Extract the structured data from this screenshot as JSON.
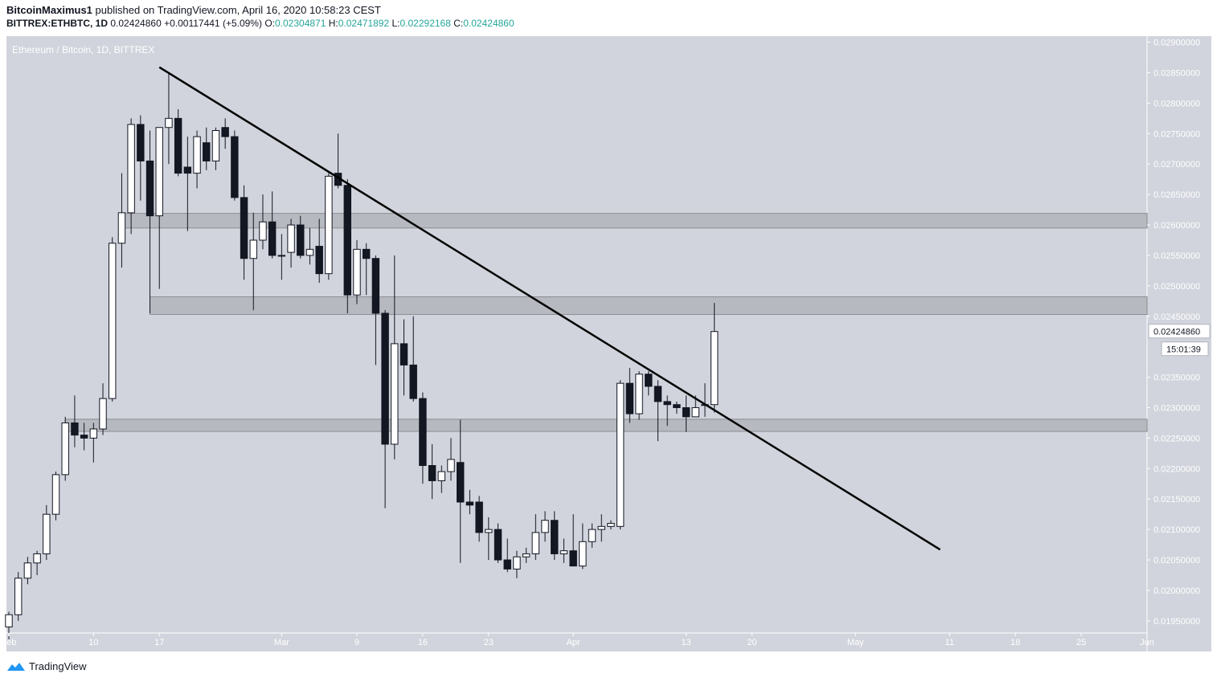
{
  "header": {
    "author": "BitcoinMaximus1",
    "published": "published on TradingView.com, April 16, 2020 10:58:23 CEST",
    "symbol": "BITTREX:ETHBTC, 1D",
    "last": "0.02424860",
    "change": "+0.00117441 (+5.09%)",
    "o_label": "O:",
    "o": "0.02304871",
    "h_label": "H:",
    "h": "0.02471892",
    "l_label": "L:",
    "l": "0.02292168",
    "c_label": "C:",
    "c": "0.02424860"
  },
  "chart_data": {
    "type": "candlestick",
    "title": "Ethereum / Bitcoin, 1D, BITTREX",
    "ylim": [
      0.0193,
      0.0291
    ],
    "yticks": [
      0.029,
      0.0285,
      0.028,
      0.0275,
      0.027,
      0.0265,
      0.026,
      0.0255,
      0.025,
      0.0245,
      0.0235,
      0.023,
      0.0225,
      0.022,
      0.0215,
      0.021,
      0.0205,
      0.02,
      0.0195
    ],
    "ytick_labels": [
      "0.02900000",
      "0.02850000",
      "0.02800000",
      "0.02750000",
      "0.02700000",
      "0.02650000",
      "0.02600000",
      "0.02550000",
      "0.02500000",
      "0.02450000",
      "0.02350000",
      "0.02300000",
      "0.02250000",
      "0.02200000",
      "0.02150000",
      "0.02100000",
      "0.02050000",
      "0.02000000",
      "0.01950000"
    ],
    "xlim": [
      "2020-02-01",
      "2020-06-01"
    ],
    "xticks": [
      {
        "date": "2020-02-01",
        "label": "Feb"
      },
      {
        "date": "2020-02-10",
        "label": "10"
      },
      {
        "date": "2020-02-17",
        "label": "17"
      },
      {
        "date": "2020-03-01",
        "label": "Mar"
      },
      {
        "date": "2020-03-09",
        "label": "9"
      },
      {
        "date": "2020-03-16",
        "label": "16"
      },
      {
        "date": "2020-03-23",
        "label": "23"
      },
      {
        "date": "2020-04-01",
        "label": "Apr"
      },
      {
        "date": "2020-04-13",
        "label": "13"
      },
      {
        "date": "2020-04-20",
        "label": "20"
      },
      {
        "date": "2020-05-01",
        "label": "May"
      },
      {
        "date": "2020-05-11",
        "label": "11"
      },
      {
        "date": "2020-05-18",
        "label": "18"
      },
      {
        "date": "2020-05-25",
        "label": "25"
      },
      {
        "date": "2020-06-01",
        "label": "Jun"
      }
    ],
    "price_label": "0.02424860",
    "countdown": "15:01:39",
    "zones": [
      {
        "from": 0.02595,
        "to": 0.02619
      },
      {
        "from": 0.02453,
        "to": 0.02482
      },
      {
        "from": 0.02261,
        "to": 0.02281
      }
    ],
    "trendline": [
      {
        "date": "2020-02-17",
        "price": 0.02859
      },
      {
        "date": "2020-05-10",
        "price": 0.02067
      }
    ],
    "candles": [
      {
        "d": "2020-01-31",
        "o": 0.01955,
        "h": 0.01975,
        "l": 0.01925,
        "c": 0.0194
      },
      {
        "d": "2020-02-01",
        "o": 0.0194,
        "h": 0.01965,
        "l": 0.0192,
        "c": 0.0196
      },
      {
        "d": "2020-02-02",
        "o": 0.0196,
        "h": 0.0203,
        "l": 0.0195,
        "c": 0.0202
      },
      {
        "d": "2020-02-03",
        "o": 0.0202,
        "h": 0.02055,
        "l": 0.0201,
        "c": 0.02045
      },
      {
        "d": "2020-02-04",
        "o": 0.02045,
        "h": 0.02065,
        "l": 0.02025,
        "c": 0.0206
      },
      {
        "d": "2020-02-05",
        "o": 0.0206,
        "h": 0.0214,
        "l": 0.0205,
        "c": 0.02125
      },
      {
        "d": "2020-02-06",
        "o": 0.02125,
        "h": 0.02195,
        "l": 0.02115,
        "c": 0.0219
      },
      {
        "d": "2020-02-07",
        "o": 0.0219,
        "h": 0.02285,
        "l": 0.0218,
        "c": 0.02275
      },
      {
        "d": "2020-02-08",
        "o": 0.02275,
        "h": 0.0232,
        "l": 0.02235,
        "c": 0.02255
      },
      {
        "d": "2020-02-09",
        "o": 0.02255,
        "h": 0.02275,
        "l": 0.0223,
        "c": 0.0225
      },
      {
        "d": "2020-02-10",
        "o": 0.0225,
        "h": 0.02275,
        "l": 0.0221,
        "c": 0.02265
      },
      {
        "d": "2020-02-11",
        "o": 0.02265,
        "h": 0.0234,
        "l": 0.02255,
        "c": 0.02315
      },
      {
        "d": "2020-02-12",
        "o": 0.02315,
        "h": 0.0258,
        "l": 0.0231,
        "c": 0.0257
      },
      {
        "d": "2020-02-13",
        "o": 0.0257,
        "h": 0.02685,
        "l": 0.0253,
        "c": 0.0262
      },
      {
        "d": "2020-02-14",
        "o": 0.0262,
        "h": 0.02775,
        "l": 0.02585,
        "c": 0.02765
      },
      {
        "d": "2020-02-15",
        "o": 0.02765,
        "h": 0.0278,
        "l": 0.0264,
        "c": 0.02705
      },
      {
        "d": "2020-02-16",
        "o": 0.02705,
        "h": 0.02755,
        "l": 0.02455,
        "c": 0.02615
      },
      {
        "d": "2020-02-17",
        "o": 0.02615,
        "h": 0.0276,
        "l": 0.02495,
        "c": 0.0276
      },
      {
        "d": "2020-02-18",
        "o": 0.0276,
        "h": 0.0285,
        "l": 0.027,
        "c": 0.02775
      },
      {
        "d": "2020-02-19",
        "o": 0.02775,
        "h": 0.0279,
        "l": 0.0268,
        "c": 0.02685
      },
      {
        "d": "2020-02-20",
        "o": 0.02695,
        "h": 0.02745,
        "l": 0.0259,
        "c": 0.02685
      },
      {
        "d": "2020-02-21",
        "o": 0.02685,
        "h": 0.02755,
        "l": 0.0266,
        "c": 0.02745
      },
      {
        "d": "2020-02-22",
        "o": 0.02735,
        "h": 0.0276,
        "l": 0.0269,
        "c": 0.02705
      },
      {
        "d": "2020-02-23",
        "o": 0.02705,
        "h": 0.0276,
        "l": 0.0269,
        "c": 0.02755
      },
      {
        "d": "2020-02-24",
        "o": 0.0276,
        "h": 0.02775,
        "l": 0.02725,
        "c": 0.02745
      },
      {
        "d": "2020-02-25",
        "o": 0.02745,
        "h": 0.02755,
        "l": 0.0264,
        "c": 0.02645
      },
      {
        "d": "2020-02-26",
        "o": 0.02645,
        "h": 0.02665,
        "l": 0.0251,
        "c": 0.02545
      },
      {
        "d": "2020-02-27",
        "o": 0.02545,
        "h": 0.0262,
        "l": 0.0246,
        "c": 0.02575
      },
      {
        "d": "2020-02-28",
        "o": 0.02575,
        "h": 0.0265,
        "l": 0.0256,
        "c": 0.02605
      },
      {
        "d": "2020-02-29",
        "o": 0.02605,
        "h": 0.02655,
        "l": 0.02545,
        "c": 0.0255
      },
      {
        "d": "2020-03-01",
        "o": 0.0255,
        "h": 0.02585,
        "l": 0.0251,
        "c": 0.0255
      },
      {
        "d": "2020-03-02",
        "o": 0.02555,
        "h": 0.0261,
        "l": 0.0253,
        "c": 0.026
      },
      {
        "d": "2020-03-03",
        "o": 0.026,
        "h": 0.02615,
        "l": 0.02545,
        "c": 0.0255
      },
      {
        "d": "2020-03-04",
        "o": 0.0255,
        "h": 0.02595,
        "l": 0.02535,
        "c": 0.0256
      },
      {
        "d": "2020-03-05",
        "o": 0.02565,
        "h": 0.0261,
        "l": 0.02505,
        "c": 0.0252
      },
      {
        "d": "2020-03-06",
        "o": 0.0252,
        "h": 0.02685,
        "l": 0.0251,
        "c": 0.0268
      },
      {
        "d": "2020-03-07",
        "o": 0.02685,
        "h": 0.0275,
        "l": 0.0266,
        "c": 0.02665
      },
      {
        "d": "2020-03-08",
        "o": 0.02665,
        "h": 0.02675,
        "l": 0.02455,
        "c": 0.02485
      },
      {
        "d": "2020-03-09",
        "o": 0.02485,
        "h": 0.02575,
        "l": 0.0247,
        "c": 0.0256
      },
      {
        "d": "2020-03-10",
        "o": 0.0256,
        "h": 0.0257,
        "l": 0.02485,
        "c": 0.02545
      },
      {
        "d": "2020-03-11",
        "o": 0.02545,
        "h": 0.0255,
        "l": 0.0237,
        "c": 0.02455
      },
      {
        "d": "2020-03-12",
        "o": 0.02455,
        "h": 0.0246,
        "l": 0.02135,
        "c": 0.0224
      },
      {
        "d": "2020-03-13",
        "o": 0.0224,
        "h": 0.0255,
        "l": 0.02215,
        "c": 0.02405
      },
      {
        "d": "2020-03-14",
        "o": 0.02405,
        "h": 0.02445,
        "l": 0.0232,
        "c": 0.0237
      },
      {
        "d": "2020-03-15",
        "o": 0.0237,
        "h": 0.0245,
        "l": 0.0231,
        "c": 0.02315
      },
      {
        "d": "2020-03-16",
        "o": 0.02315,
        "h": 0.02325,
        "l": 0.02175,
        "c": 0.02205
      },
      {
        "d": "2020-03-17",
        "o": 0.02205,
        "h": 0.0224,
        "l": 0.0215,
        "c": 0.0218
      },
      {
        "d": "2020-03-18",
        "o": 0.0218,
        "h": 0.02205,
        "l": 0.0216,
        "c": 0.02195
      },
      {
        "d": "2020-03-19",
        "o": 0.02195,
        "h": 0.0225,
        "l": 0.0218,
        "c": 0.02215
      },
      {
        "d": "2020-03-20",
        "o": 0.0221,
        "h": 0.0228,
        "l": 0.02045,
        "c": 0.02145
      },
      {
        "d": "2020-03-21",
        "o": 0.02145,
        "h": 0.02165,
        "l": 0.02125,
        "c": 0.0214
      },
      {
        "d": "2020-03-22",
        "o": 0.02145,
        "h": 0.02155,
        "l": 0.0208,
        "c": 0.02095
      },
      {
        "d": "2020-03-23",
        "o": 0.02095,
        "h": 0.0212,
        "l": 0.0205,
        "c": 0.021
      },
      {
        "d": "2020-03-24",
        "o": 0.021,
        "h": 0.0211,
        "l": 0.02045,
        "c": 0.0205
      },
      {
        "d": "2020-03-25",
        "o": 0.0205,
        "h": 0.02085,
        "l": 0.0203,
        "c": 0.02035
      },
      {
        "d": "2020-03-26",
        "o": 0.02035,
        "h": 0.02065,
        "l": 0.0202,
        "c": 0.02055
      },
      {
        "d": "2020-03-27",
        "o": 0.02055,
        "h": 0.0207,
        "l": 0.02045,
        "c": 0.0206
      },
      {
        "d": "2020-03-28",
        "o": 0.0206,
        "h": 0.02125,
        "l": 0.0205,
        "c": 0.02095
      },
      {
        "d": "2020-03-29",
        "o": 0.02095,
        "h": 0.0213,
        "l": 0.0208,
        "c": 0.02115
      },
      {
        "d": "2020-03-30",
        "o": 0.02115,
        "h": 0.0213,
        "l": 0.0205,
        "c": 0.0206
      },
      {
        "d": "2020-03-31",
        "o": 0.0206,
        "h": 0.02085,
        "l": 0.02045,
        "c": 0.02065
      },
      {
        "d": "2020-04-01",
        "o": 0.02065,
        "h": 0.02125,
        "l": 0.0204,
        "c": 0.0204
      },
      {
        "d": "2020-04-02",
        "o": 0.0204,
        "h": 0.0211,
        "l": 0.02035,
        "c": 0.0208
      },
      {
        "d": "2020-04-03",
        "o": 0.0208,
        "h": 0.0211,
        "l": 0.0207,
        "c": 0.021
      },
      {
        "d": "2020-04-04",
        "o": 0.021,
        "h": 0.02125,
        "l": 0.0208,
        "c": 0.02105
      },
      {
        "d": "2020-04-05",
        "o": 0.02105,
        "h": 0.02115,
        "l": 0.021,
        "c": 0.0211
      },
      {
        "d": "2020-04-06",
        "o": 0.02105,
        "h": 0.02345,
        "l": 0.021,
        "c": 0.0234
      },
      {
        "d": "2020-04-07",
        "o": 0.0234,
        "h": 0.02365,
        "l": 0.02275,
        "c": 0.0229
      },
      {
        "d": "2020-04-08",
        "o": 0.0229,
        "h": 0.0236,
        "l": 0.0228,
        "c": 0.02355
      },
      {
        "d": "2020-04-09",
        "o": 0.02355,
        "h": 0.0236,
        "l": 0.0232,
        "c": 0.02335
      },
      {
        "d": "2020-04-10",
        "o": 0.02335,
        "h": 0.02345,
        "l": 0.02245,
        "c": 0.0231
      },
      {
        "d": "2020-04-11",
        "o": 0.0231,
        "h": 0.0232,
        "l": 0.0227,
        "c": 0.02305
      },
      {
        "d": "2020-04-12",
        "o": 0.02305,
        "h": 0.0231,
        "l": 0.0229,
        "c": 0.023
      },
      {
        "d": "2020-04-13",
        "o": 0.023,
        "h": 0.0232,
        "l": 0.0226,
        "c": 0.02285
      },
      {
        "d": "2020-04-14",
        "o": 0.02285,
        "h": 0.0232,
        "l": 0.02285,
        "c": 0.023
      },
      {
        "d": "2020-04-15",
        "o": 0.02305,
        "h": 0.0234,
        "l": 0.02285,
        "c": 0.02305
      },
      {
        "d": "2020-04-16",
        "o": 0.02305,
        "h": 0.02472,
        "l": 0.02292,
        "c": 0.02425
      }
    ]
  },
  "footer": {
    "brand": "TradingView"
  }
}
